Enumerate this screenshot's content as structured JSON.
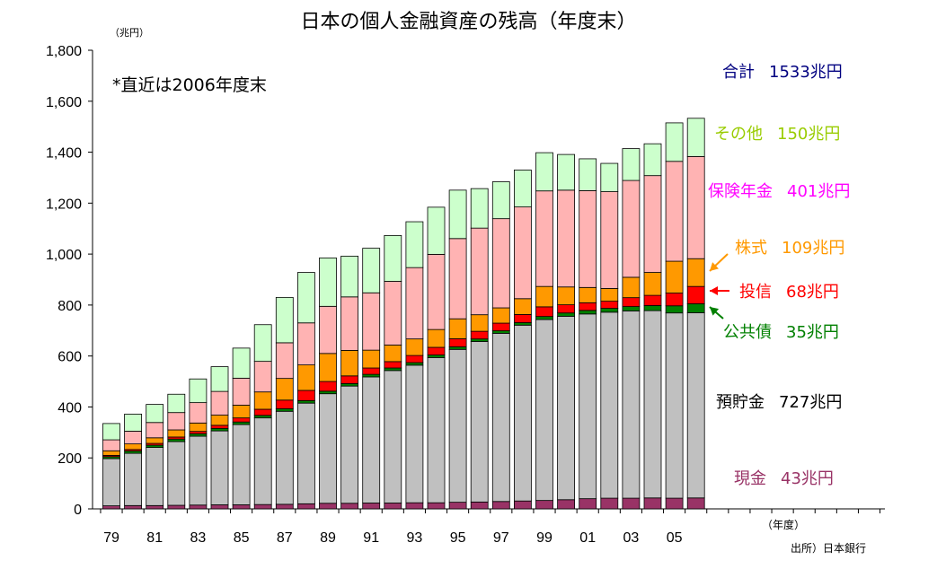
{
  "title": "日本の個人金融資産の残高（年度末）",
  "unit_label": "（兆円）",
  "note": "*直近は2006年度末",
  "x_unit": "（年度）",
  "source": "出所）日本銀行",
  "colors": {
    "cash": "#993366",
    "deposits": "#c0c0c0",
    "bonds": "#008000",
    "trusts": "#ff0000",
    "stocks": "#ff9900",
    "insurance": "#ffb3b3",
    "other": "#ccffcc"
  },
  "labels": {
    "total": {
      "name": "合計",
      "value": "1533兆円",
      "color": "#000080"
    },
    "other": {
      "name": "その他",
      "value": "150兆円",
      "color": "#99cc00"
    },
    "insurance": {
      "name": "保険年金",
      "value": "401兆円",
      "color": "#ff00ff"
    },
    "stocks": {
      "name": "株式",
      "value": "109兆円",
      "color": "#ff9900"
    },
    "trusts": {
      "name": "投信",
      "value": "68兆円",
      "color": "#ff0000"
    },
    "bonds": {
      "name": "公共債",
      "value": "35兆円",
      "color": "#008000"
    },
    "deposits": {
      "name": "預貯金",
      "value": "727兆円",
      "color": "#000000"
    },
    "cash": {
      "name": "現金",
      "value": "43兆円",
      "color": "#993366"
    }
  },
  "chart_data": {
    "type": "bar",
    "stacked": true,
    "ylim": [
      0,
      1800
    ],
    "yticks": [
      "0",
      "200",
      "400",
      "600",
      "800",
      "1,000",
      "1,200",
      "1,400",
      "1,600",
      "1,800"
    ],
    "ytick_values": [
      0,
      200,
      400,
      600,
      800,
      1000,
      1200,
      1400,
      1600,
      1800
    ],
    "xtick_labels": [
      "79",
      "81",
      "83",
      "85",
      "87",
      "89",
      "91",
      "93",
      "95",
      "97",
      "99",
      "01",
      "03",
      "05"
    ],
    "categories": [
      "79",
      "80",
      "81",
      "82",
      "83",
      "84",
      "85",
      "86",
      "87",
      "88",
      "89",
      "90",
      "91",
      "92",
      "93",
      "94",
      "95",
      "96",
      "97",
      "98",
      "99",
      "00",
      "01",
      "02",
      "03",
      "04",
      "05",
      "06"
    ],
    "series": [
      {
        "key": "cash",
        "values": [
          12,
          13,
          13,
          14,
          15,
          16,
          16,
          17,
          18,
          20,
          22,
          22,
          23,
          23,
          24,
          24,
          26,
          27,
          29,
          31,
          33,
          36,
          40,
          42,
          42,
          43,
          42,
          43
        ]
      },
      {
        "key": "deposits",
        "values": [
          185,
          205,
          228,
          250,
          270,
          290,
          315,
          340,
          365,
          395,
          430,
          460,
          495,
          520,
          540,
          570,
          600,
          630,
          660,
          690,
          710,
          720,
          725,
          730,
          735,
          735,
          727,
          727
        ]
      },
      {
        "key": "bonds",
        "values": [
          8,
          9,
          9,
          10,
          10,
          10,
          10,
          10,
          10,
          10,
          10,
          10,
          10,
          10,
          10,
          10,
          10,
          10,
          10,
          10,
          12,
          13,
          14,
          15,
          17,
          20,
          28,
          35
        ]
      },
      {
        "key": "trusts",
        "values": [
          5,
          6,
          7,
          8,
          9,
          12,
          16,
          24,
          34,
          40,
          38,
          30,
          25,
          25,
          28,
          30,
          32,
          30,
          30,
          32,
          38,
          32,
          30,
          28,
          35,
          40,
          50,
          68
        ]
      },
      {
        "key": "stocks",
        "values": [
          18,
          22,
          22,
          28,
          33,
          40,
          50,
          68,
          85,
          100,
          110,
          100,
          70,
          65,
          65,
          70,
          78,
          65,
          60,
          62,
          80,
          70,
          60,
          50,
          80,
          90,
          125,
          109
        ]
      },
      {
        "key": "insurance",
        "values": [
          43,
          50,
          60,
          68,
          80,
          93,
          106,
          120,
          140,
          165,
          185,
          210,
          225,
          250,
          280,
          295,
          315,
          340,
          350,
          360,
          375,
          380,
          380,
          380,
          380,
          380,
          392,
          401
        ]
      },
      {
        "key": "other",
        "values": [
          64,
          67,
          71,
          72,
          93,
          97,
          118,
          144,
          178,
          198,
          190,
          160,
          175,
          180,
          180,
          185,
          190,
          155,
          145,
          145,
          150,
          140,
          125,
          111,
          125,
          125,
          151,
          150
        ]
      }
    ]
  }
}
